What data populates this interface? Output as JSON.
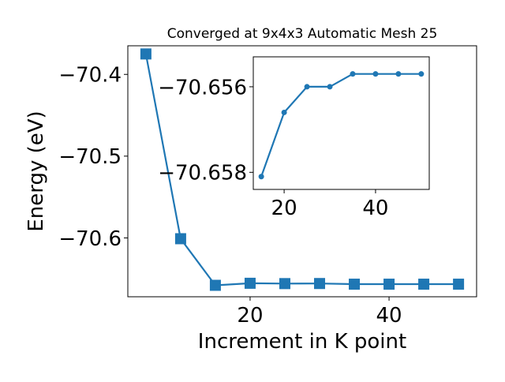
{
  "chart_data": [
    {
      "type": "line",
      "title": "Converged at 9x4x3 Automatic Mesh 25",
      "xlabel": "Increment in K point",
      "ylabel": "Energy (eV)",
      "xlim": [
        2.4,
        52.6
      ],
      "ylim": [
        -70.672,
        -70.365
      ],
      "xticks": [
        20,
        40
      ],
      "yticks": [
        -70.4,
        -70.5,
        -70.6
      ],
      "xtick_labels": [
        "20",
        "40"
      ],
      "ytick_labels": [
        "−70.4",
        "−70.5",
        "−70.6"
      ],
      "marker": "square",
      "color": "#1f77b4",
      "grid": false,
      "series": [
        {
          "x": [
            5,
            10,
            15,
            20,
            25,
            30,
            35,
            40,
            45,
            50
          ],
          "y": [
            -70.375,
            -70.601,
            -70.658,
            -70.6555,
            -70.6559,
            -70.6558,
            -70.6566,
            -70.6566,
            -70.6566,
            -70.6566
          ]
        }
      ]
    },
    {
      "type": "line",
      "title": "",
      "xlabel": "",
      "ylabel": "",
      "xlim": [
        13.25,
        51.75
      ],
      "ylim": [
        -70.6584,
        -70.6553
      ],
      "xticks": [
        20,
        40
      ],
      "yticks": [
        -70.658,
        -70.656
      ],
      "xtick_labels": [
        "20",
        "40"
      ],
      "ytick_labels": [
        "−70.658",
        "−70.656"
      ],
      "marker": "circle",
      "color": "#1f77b4",
      "grid": false,
      "series": [
        {
          "x": [
            15,
            20,
            25,
            30,
            35,
            40,
            45,
            50
          ],
          "y": [
            -70.6581,
            -70.6566,
            -70.656,
            -70.656,
            -70.6557,
            -70.6557,
            -70.6557,
            -70.6557
          ]
        }
      ]
    }
  ]
}
